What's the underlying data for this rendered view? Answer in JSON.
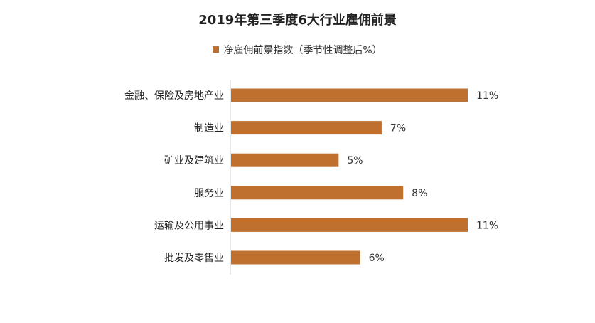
{
  "chart_data": {
    "type": "bar",
    "orientation": "horizontal",
    "title": "2019年第三季度6大行业雇佣前景",
    "categories": [
      "金融、保险及房地产业",
      "制造业",
      "矿业及建筑业",
      "服务业",
      "运输及公用事业",
      "批发及零售业"
    ],
    "series": [
      {
        "name": "净雇佣前景指数（季节性调整后%）",
        "values": [
          11,
          7,
          5,
          8,
          11,
          6
        ],
        "labels": [
          "11%",
          "7%",
          "5%",
          "8%",
          "11%",
          "6%"
        ],
        "color": "#C0702E"
      }
    ],
    "xlim": [
      0,
      11
    ],
    "grid": false,
    "legend": "top"
  }
}
